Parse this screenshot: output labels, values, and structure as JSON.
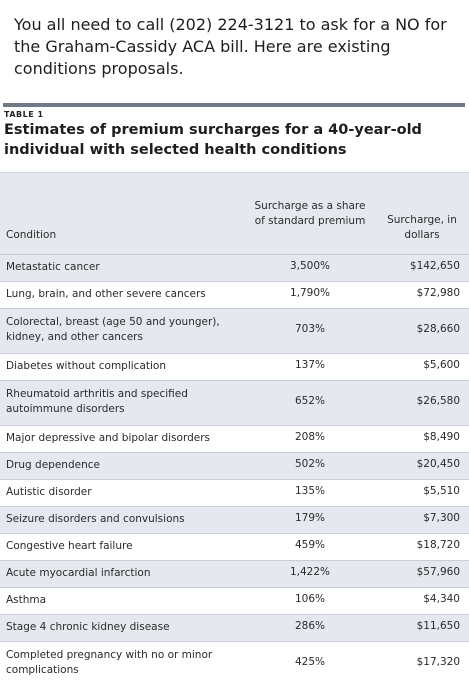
{
  "post": {
    "text": "You all need to call (202) 224-3121 to ask for a NO for the Graham-Cassidy ACA bill. Here are existing conditions proposals."
  },
  "table": {
    "tag": "TABLE 1",
    "title": "Estimates of premium surcharges for a 40-year-old individual with selected health conditions",
    "headers": {
      "condition": "Condition",
      "share": "Surcharge as a share of standard premium",
      "dollars": "Surcharge, in dollars"
    },
    "rows": [
      {
        "condition": "Metastatic cancer",
        "share": "3,500%",
        "dollars": "$142,650"
      },
      {
        "condition": "Lung, brain, and other severe cancers",
        "share": "1,790%",
        "dollars": "$72,980"
      },
      {
        "condition": "Colorectal, breast (age 50 and younger), kidney, and other cancers",
        "share": "703%",
        "dollars": "$28,660"
      },
      {
        "condition": "Diabetes without complication",
        "share": "137%",
        "dollars": "$5,600"
      },
      {
        "condition": "Rheumatoid arthritis and specified autoimmune disorders",
        "share": "652%",
        "dollars": "$26,580"
      },
      {
        "condition": "Major depressive and bipolar disorders",
        "share": "208%",
        "dollars": "$8,490"
      },
      {
        "condition": "Drug dependence",
        "share": "502%",
        "dollars": "$20,450"
      },
      {
        "condition": "Autistic disorder",
        "share": "135%",
        "dollars": "$5,510"
      },
      {
        "condition": "Seizure disorders and convulsions",
        "share": "179%",
        "dollars": "$7,300"
      },
      {
        "condition": "Congestive heart failure",
        "share": "459%",
        "dollars": "$18,720"
      },
      {
        "condition": "Acute myocardial infarction",
        "share": "1,422%",
        "dollars": "$57,960"
      },
      {
        "condition": "Asthma",
        "share": "106%",
        "dollars": "$4,340"
      },
      {
        "condition": "Stage 4 chronic kidney disease",
        "share": "286%",
        "dollars": "$11,650"
      },
      {
        "condition": "Completed pregnancy with no or minor complications",
        "share": "425%",
        "dollars": "$17,320"
      }
    ]
  }
}
